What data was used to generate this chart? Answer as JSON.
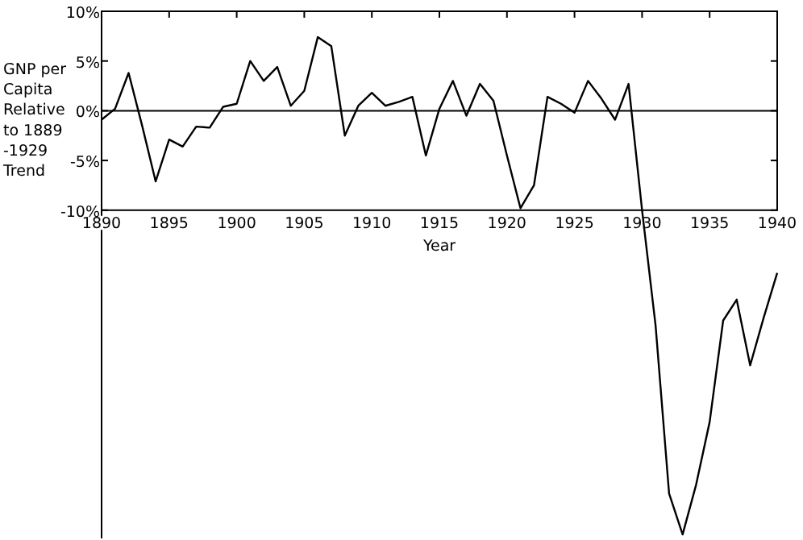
{
  "chart_data": {
    "type": "line",
    "xlabel": "Year",
    "ylabel": "GNP per\nCapita\nRelative\nto 1889\n-1929\nTrend",
    "x": [
      1890,
      1891,
      1892,
      1893,
      1894,
      1895,
      1896,
      1897,
      1898,
      1899,
      1900,
      1901,
      1902,
      1903,
      1904,
      1905,
      1906,
      1907,
      1908,
      1909,
      1910,
      1911,
      1912,
      1913,
      1914,
      1915,
      1916,
      1917,
      1918,
      1919,
      1920,
      1921,
      1922,
      1923,
      1924,
      1925,
      1926,
      1927,
      1928,
      1929,
      1930,
      1931,
      1932,
      1933,
      1934,
      1935,
      1936,
      1937,
      1938,
      1939,
      1940
    ],
    "values": [
      -0.9,
      0.2,
      3.8,
      -1.5,
      -7.1,
      -2.9,
      -3.6,
      -1.6,
      -1.7,
      0.4,
      0.7,
      5.0,
      3.0,
      4.4,
      0.5,
      2.0,
      7.4,
      6.5,
      -2.5,
      0.5,
      1.8,
      0.5,
      0.9,
      1.4,
      -4.5,
      0.2,
      3.0,
      -0.5,
      2.7,
      1.0,
      -4.5,
      -9.8,
      -7.5,
      1.4,
      0.7,
      -0.2,
      3.0,
      1.2,
      -0.9,
      2.7,
      -10,
      -21.6,
      -38.5,
      -42.6,
      -37.6,
      -31.3,
      -21.1,
      -19.0,
      -25.6,
      -20.8,
      -16.3
    ],
    "color": "#000000",
    "marker": "none",
    "line_style": "solid",
    "grid": false,
    "xlim": [
      1890,
      1940
    ],
    "xticks": [
      1890,
      1895,
      1900,
      1905,
      1910,
      1915,
      1920,
      1925,
      1930,
      1935,
      1940
    ],
    "ylim": [
      -43,
      10
    ],
    "yticks": [
      {
        "value": -10,
        "label": "-10%"
      },
      {
        "value": -5,
        "label": "-5%"
      },
      {
        "value": 0,
        "label": "0%"
      },
      {
        "value": 5,
        "label": "5%"
      },
      {
        "value": 10,
        "label": "10%"
      }
    ],
    "ref_lines": [
      {
        "axis": "y",
        "value": 0,
        "color": "#000000"
      }
    ]
  }
}
